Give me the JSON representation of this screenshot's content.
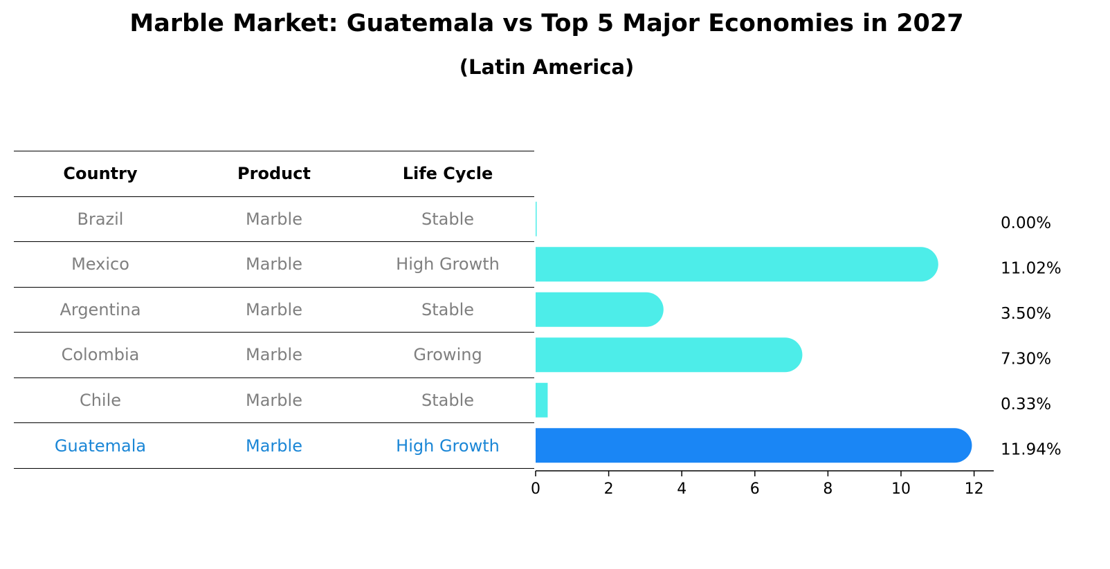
{
  "title": "Marble Market: Guatemala vs Top 5 Major Economies in 2027",
  "subtitle": "(Latin America)",
  "table": {
    "headers": [
      "Country",
      "Product",
      "Life Cycle"
    ],
    "rows": [
      {
        "country": "Brazil",
        "product": "Marble",
        "life_cycle": "Stable"
      },
      {
        "country": "Mexico",
        "product": "Marble",
        "life_cycle": "High Growth"
      },
      {
        "country": "Argentina",
        "product": "Marble",
        "life_cycle": "Stable"
      },
      {
        "country": "Colombia",
        "product": "Marble",
        "life_cycle": "Growing"
      },
      {
        "country": "Chile",
        "product": "Marble",
        "life_cycle": "Stable"
      },
      {
        "country": "Guatemala",
        "product": "Marble",
        "life_cycle": "High Growth"
      }
    ]
  },
  "chart_data": {
    "type": "bar",
    "orientation": "horizontal",
    "categories": [
      "Brazil",
      "Mexico",
      "Argentina",
      "Colombia",
      "Chile",
      "Guatemala"
    ],
    "values": [
      0.0,
      11.02,
      3.5,
      7.3,
      0.33,
      11.94
    ],
    "value_labels": [
      "0.00%",
      "11.02%",
      "3.50%",
      "7.30%",
      "0.33%",
      "11.94%"
    ],
    "x_ticks": [
      "0",
      "2",
      "4",
      "6",
      "8",
      "10",
      "12"
    ],
    "xlim": [
      0,
      12.5
    ],
    "grid": false,
    "colors": {
      "default": "#4dede9",
      "highlight": "#1a86f5",
      "highlight_text": "#1a86d6",
      "muted_text": "#7f7f7f"
    }
  }
}
